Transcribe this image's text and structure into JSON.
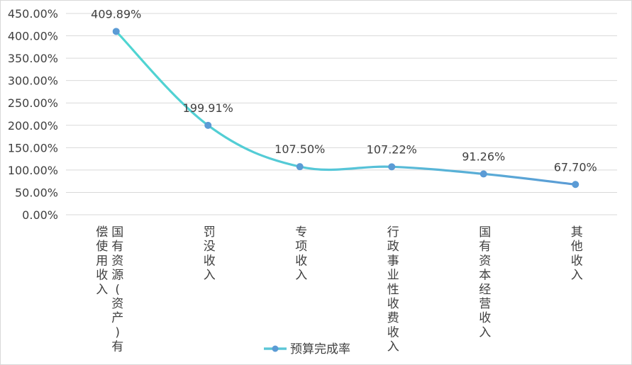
{
  "chart_data": {
    "type": "line",
    "categories": [
      "国有资源(资产)有偿使用收入",
      "罚没收入",
      "专项收入",
      "行政事业性收费收入",
      "国有资本经营收入",
      "其他收入"
    ],
    "series": [
      {
        "name": "预算完成率",
        "values": [
          409.89,
          199.91,
          107.5,
          107.22,
          91.26,
          67.7
        ],
        "labels": [
          "409.89%",
          "199.91%",
          "107.50%",
          "107.22%",
          "91.26%",
          "67.70%"
        ]
      }
    ],
    "y_ticks": [
      "0.00%",
      "50.00%",
      "100.00%",
      "150.00%",
      "200.00%",
      "250.00%",
      "300.00%",
      "350.00%",
      "400.00%",
      "450.00%"
    ],
    "ylim": [
      0,
      450
    ],
    "grid": true,
    "legend_position": "bottom",
    "colors": {
      "line_start": "#4fd6d1",
      "line_end": "#5b9bd5",
      "marker": "#5b9bd5",
      "grid": "#d9d9d9",
      "text": "#404040"
    }
  }
}
